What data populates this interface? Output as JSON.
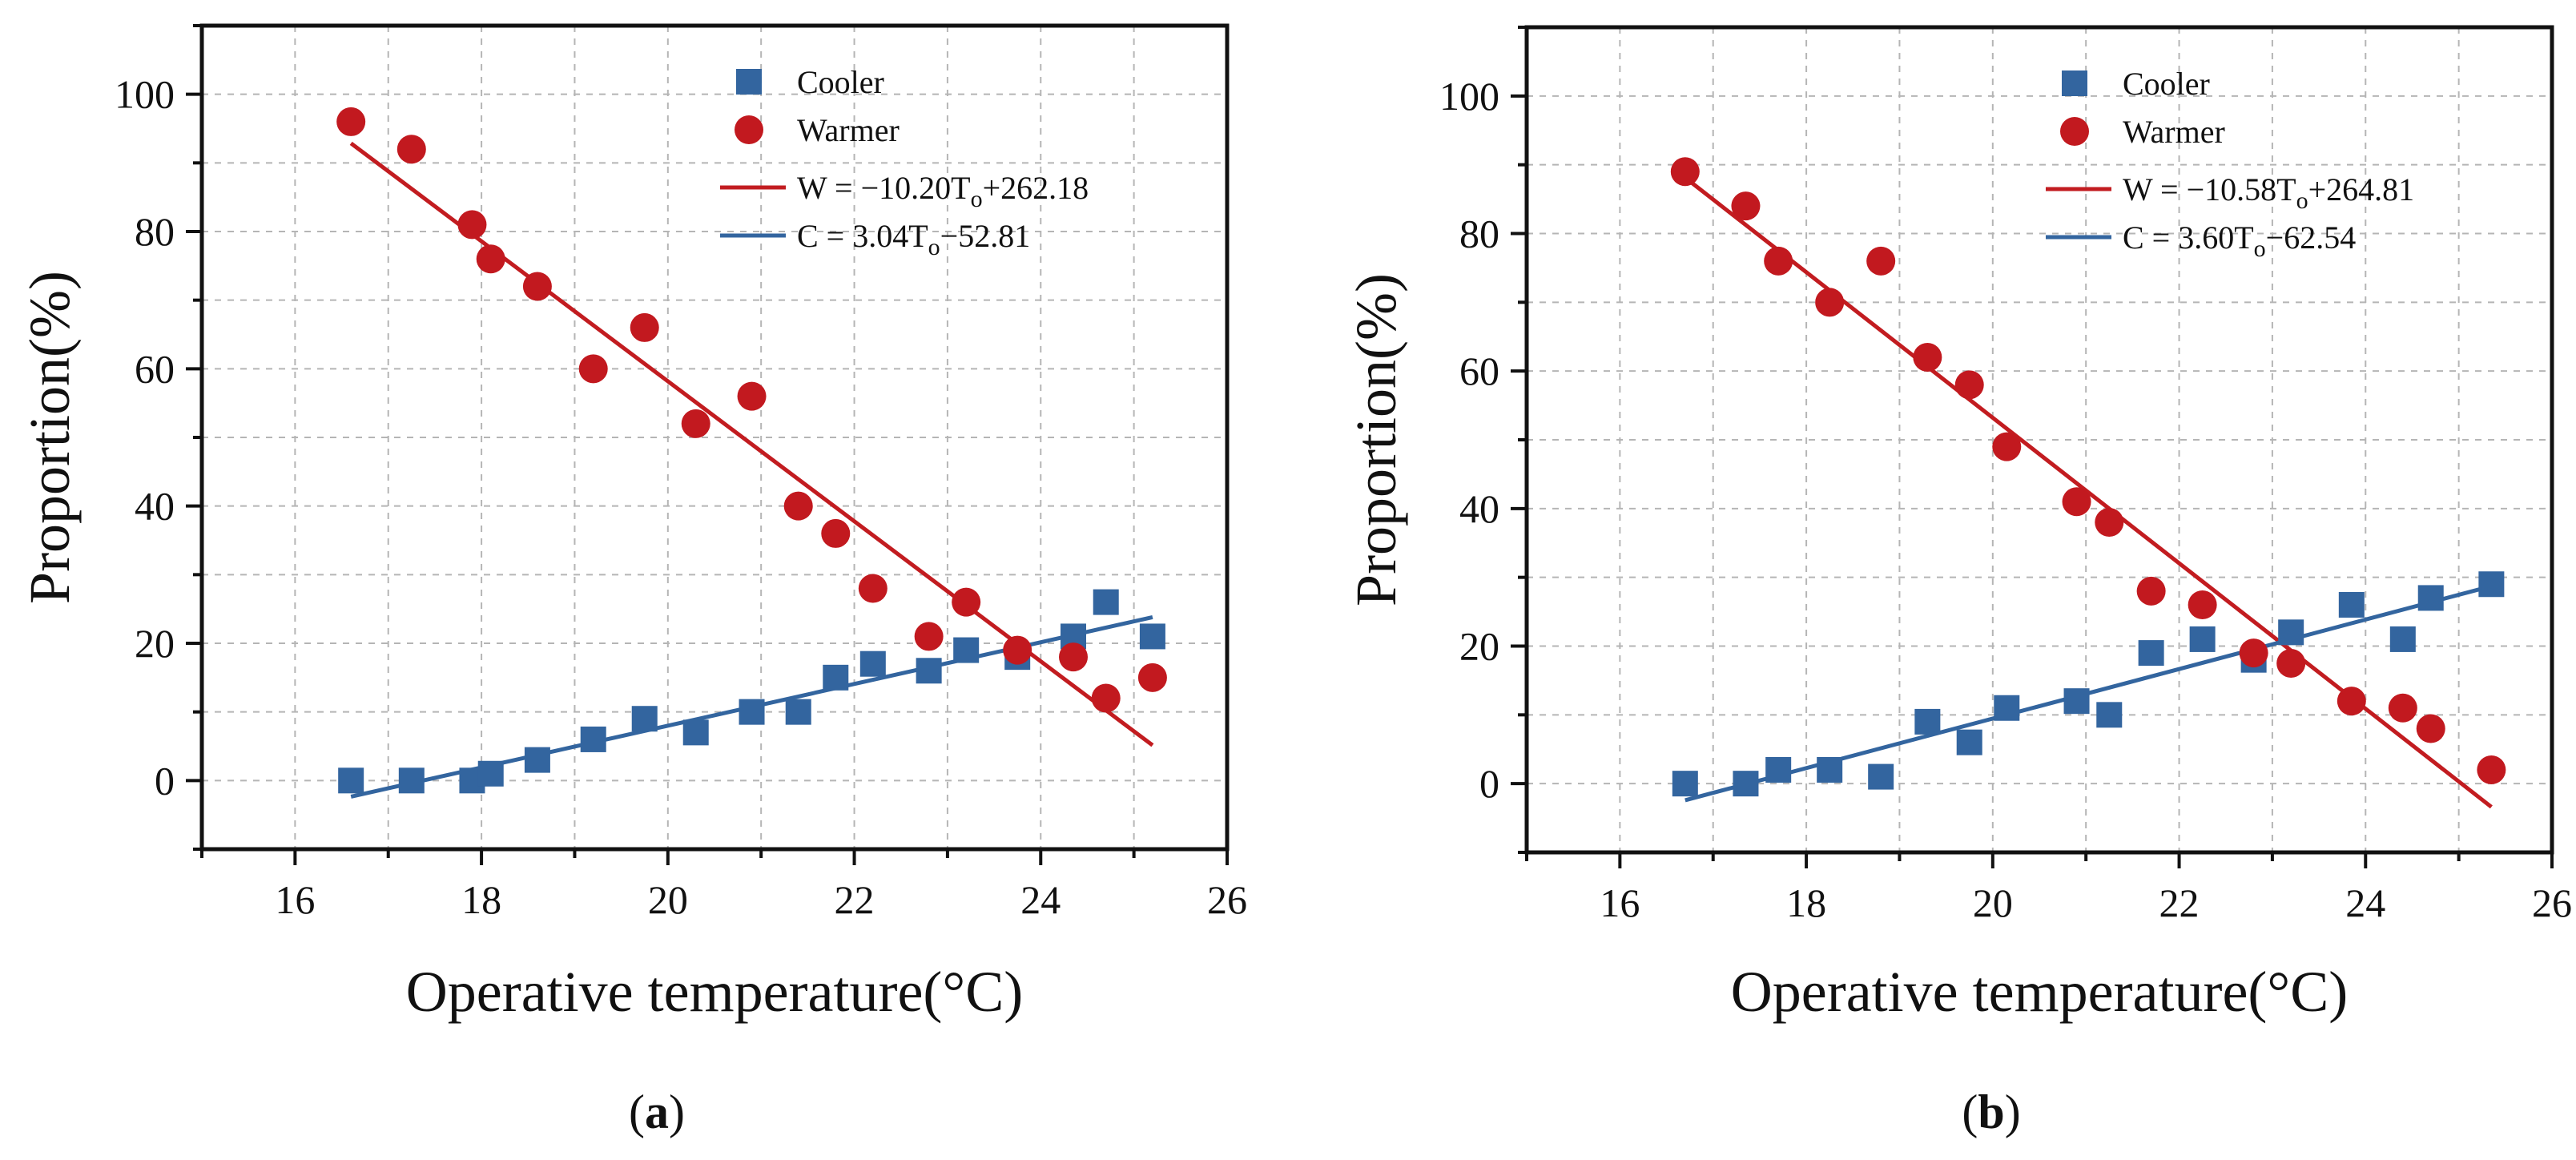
{
  "colors": {
    "cooler": "#33659f",
    "warmer": "#c2191f",
    "cooler_line": "#33659f",
    "warmer_line": "#c21c20",
    "grid": "#b5b5b5",
    "frame": "#111111"
  },
  "chart_data": [
    {
      "id": "a",
      "type": "scatter",
      "panel_label_open": "(",
      "panel_label_letter": "a",
      "panel_label_close": ")",
      "xlabel": "Operative temperature(°C)",
      "ylabel": "Proportion(%)",
      "xlim": [
        15,
        26
      ],
      "ylim": [
        -10,
        110
      ],
      "xticks": [
        16,
        18,
        20,
        22,
        24,
        26
      ],
      "yticks": [
        0,
        20,
        40,
        60,
        80,
        100
      ],
      "grid": true,
      "legend_position": "top-right",
      "series": [
        {
          "name": "Cooler",
          "marker": "square",
          "color_key": "cooler",
          "points": [
            [
              16.6,
              0
            ],
            [
              17.25,
              0
            ],
            [
              17.9,
              0
            ],
            [
              18.1,
              1
            ],
            [
              18.6,
              3
            ],
            [
              19.2,
              6
            ],
            [
              19.75,
              9
            ],
            [
              20.3,
              7
            ],
            [
              20.9,
              10
            ],
            [
              21.4,
              10
            ],
            [
              21.8,
              15
            ],
            [
              22.2,
              17
            ],
            [
              22.8,
              16
            ],
            [
              23.2,
              19
            ],
            [
              23.75,
              18
            ],
            [
              24.35,
              21
            ],
            [
              24.7,
              26
            ],
            [
              25.2,
              21
            ]
          ]
        },
        {
          "name": "Warmer",
          "marker": "circle",
          "color_key": "warmer",
          "points": [
            [
              16.6,
              96
            ],
            [
              17.25,
              92
            ],
            [
              17.9,
              81
            ],
            [
              18.1,
              76
            ],
            [
              18.6,
              72
            ],
            [
              19.2,
              60
            ],
            [
              19.75,
              66
            ],
            [
              20.3,
              52
            ],
            [
              20.9,
              56
            ],
            [
              21.4,
              40
            ],
            [
              21.8,
              36
            ],
            [
              22.2,
              28
            ],
            [
              22.8,
              21
            ],
            [
              23.2,
              26
            ],
            [
              23.75,
              19
            ],
            [
              24.35,
              18
            ],
            [
              24.7,
              12
            ],
            [
              25.2,
              15
            ]
          ]
        }
      ],
      "fits": [
        {
          "name": "W = −10.20T",
          "subscript": "o",
          "suffix": "+262.18",
          "slope": -10.2,
          "intercept": 262.18,
          "x_range": [
            16.6,
            25.2
          ],
          "color_key": "warmer_line"
        },
        {
          "name": "C = 3.04T",
          "subscript": "o",
          "suffix": "−52.81",
          "slope": 3.04,
          "intercept": -52.81,
          "x_range": [
            16.6,
            25.2
          ],
          "color_key": "cooler_line"
        }
      ]
    },
    {
      "id": "b",
      "type": "scatter",
      "panel_label_open": "(",
      "panel_label_letter": "b",
      "panel_label_close": ")",
      "xlabel": "Operative temperature(°C)",
      "ylabel": "Proportion(%)",
      "xlim": [
        15,
        26
      ],
      "ylim": [
        -10,
        110
      ],
      "xticks": [
        16,
        18,
        20,
        22,
        24,
        26
      ],
      "yticks": [
        0,
        20,
        40,
        60,
        80,
        100
      ],
      "grid": true,
      "legend_position": "top-right",
      "series": [
        {
          "name": "Cooler",
          "marker": "square",
          "color_key": "cooler",
          "points": [
            [
              16.7,
              0
            ],
            [
              17.35,
              0
            ],
            [
              17.7,
              2
            ],
            [
              18.25,
              2
            ],
            [
              18.8,
              1
            ],
            [
              19.3,
              9
            ],
            [
              19.75,
              6
            ],
            [
              20.15,
              11
            ],
            [
              20.9,
              12
            ],
            [
              21.25,
              10
            ],
            [
              21.7,
              19
            ],
            [
              22.25,
              21
            ],
            [
              22.8,
              18
            ],
            [
              23.2,
              22
            ],
            [
              23.85,
              26
            ],
            [
              24.4,
              21
            ],
            [
              24.7,
              27
            ],
            [
              25.35,
              29
            ]
          ]
        },
        {
          "name": "Warmer",
          "marker": "circle",
          "color_key": "warmer",
          "points": [
            [
              16.7,
              89
            ],
            [
              17.35,
              84
            ],
            [
              17.7,
              76
            ],
            [
              18.25,
              70
            ],
            [
              18.8,
              76
            ],
            [
              19.3,
              62
            ],
            [
              19.75,
              58
            ],
            [
              20.15,
              49
            ],
            [
              20.9,
              41
            ],
            [
              21.25,
              38
            ],
            [
              21.7,
              28
            ],
            [
              22.25,
              26
            ],
            [
              22.8,
              19
            ],
            [
              23.2,
              17.5
            ],
            [
              23.85,
              12
            ],
            [
              24.4,
              11
            ],
            [
              24.7,
              8
            ],
            [
              25.35,
              2
            ]
          ]
        }
      ],
      "fits": [
        {
          "name": "W = −10.58T",
          "subscript": "o",
          "suffix": "+264.81",
          "slope": -10.58,
          "intercept": 264.81,
          "x_range": [
            16.7,
            25.35
          ],
          "color_key": "warmer_line"
        },
        {
          "name": "C = 3.60T",
          "subscript": "o",
          "suffix": "−62.54",
          "slope": 3.6,
          "intercept": -62.54,
          "x_range": [
            16.7,
            25.35
          ],
          "color_key": "cooler_line"
        }
      ]
    }
  ]
}
